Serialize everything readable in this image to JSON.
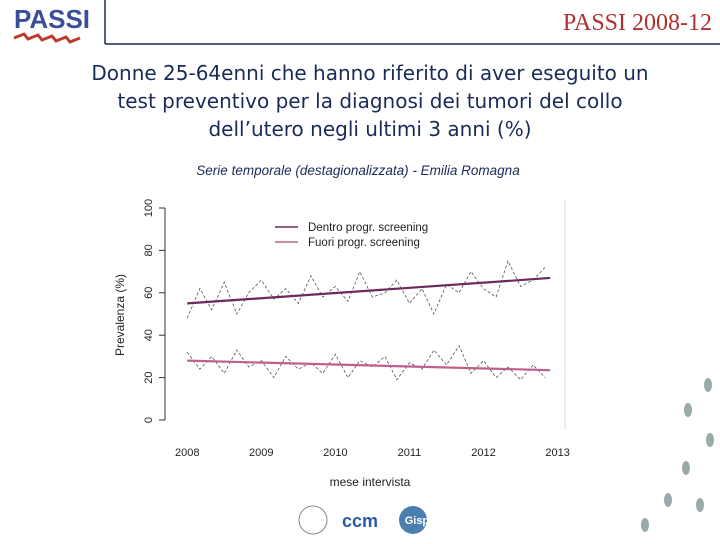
{
  "header": {
    "logo": "PASSI",
    "title": "PASSI 2008-12"
  },
  "logos": [
    "ccm",
    "Gisps"
  ],
  "chart_data": {
    "type": "line",
    "title": "Donne 25-64enni che hanno riferito di aver eseguito un test preventivo per la diagnosi dei tumori del collo dell’utero negli ultimi 3 anni (%)",
    "subtitle": "Serie temporale (destagionalizzata) - Emilia Romagna",
    "x_label": "mese intervista",
    "y_label": "Prevalenza (%)",
    "xlim": [
      2007.7,
      2013.1
    ],
    "xticks": [
      2008,
      2009,
      2010,
      2011,
      2012,
      2013
    ],
    "ylim": [
      0,
      100
    ],
    "yticks": [
      0,
      20,
      40,
      60,
      80,
      100
    ],
    "legend": "top-left",
    "series": [
      {
        "name": "Dentro progr. screening",
        "color": "#6b2a5a",
        "style": "solid",
        "x": [
          2008,
          2012.9
        ],
        "values": [
          55,
          67
        ]
      },
      {
        "name": "Fuori progr. screening",
        "color": "#c0608a",
        "style": "solid",
        "x": [
          2008,
          2012.9
        ],
        "values": [
          28,
          23.5
        ]
      },
      {
        "color": "#555555",
        "style": "dashed",
        "x": [
          2008,
          2008.17,
          2008.33,
          2008.5,
          2008.67,
          2008.83,
          2009,
          2009.17,
          2009.33,
          2009.5,
          2009.67,
          2009.83,
          2010,
          2010.17,
          2010.33,
          2010.5,
          2010.67,
          2010.83,
          2011,
          2011.17,
          2011.33,
          2011.5,
          2011.67,
          2011.83,
          2012,
          2012.17,
          2012.33,
          2012.5,
          2012.67,
          2012.83
        ],
        "values": [
          48,
          62,
          52,
          65,
          50,
          60,
          66,
          57,
          62,
          55,
          68,
          58,
          63,
          56,
          70,
          58,
          60,
          66,
          55,
          62,
          50,
          64,
          60,
          70,
          62,
          58,
          75,
          63,
          66,
          72
        ]
      },
      {
        "color": "#555555",
        "style": "dashed",
        "x": [
          2008,
          2008.17,
          2008.33,
          2008.5,
          2008.67,
          2008.83,
          2009,
          2009.17,
          2009.33,
          2009.5,
          2009.67,
          2009.83,
          2010,
          2010.17,
          2010.33,
          2010.5,
          2010.67,
          2010.83,
          2011,
          2011.17,
          2011.33,
          2011.5,
          2011.67,
          2011.83,
          2012,
          2012.17,
          2012.33,
          2012.5,
          2012.67,
          2012.83
        ],
        "values": [
          32,
          24,
          30,
          22,
          33,
          25,
          28,
          20,
          30,
          24,
          27,
          22,
          31,
          20,
          28,
          25,
          30,
          19,
          27,
          24,
          33,
          26,
          35,
          22,
          28,
          20,
          25,
          19,
          26,
          20
        ]
      }
    ]
  }
}
